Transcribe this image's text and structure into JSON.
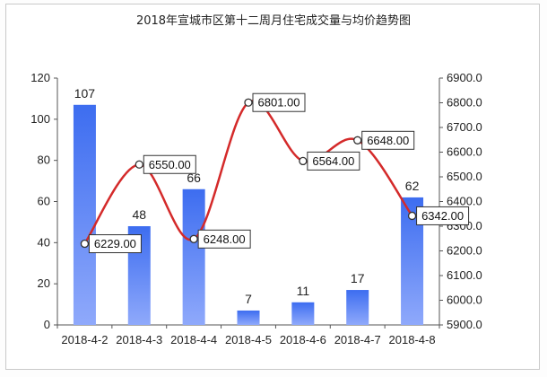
{
  "chart_data": {
    "type": "bar+line",
    "title": "2018年宣城市区第十二周月住宅成交量与均价趋势图",
    "categories": [
      "2018-4-2",
      "2018-4-3",
      "2018-4-4",
      "2018-4-5",
      "2018-4-6",
      "2018-4-7",
      "2018-4-8"
    ],
    "series": [
      {
        "type": "bar",
        "axis": "left",
        "values": [
          107,
          48,
          66,
          7,
          11,
          17,
          62
        ]
      },
      {
        "type": "line",
        "axis": "right",
        "values": [
          6229.0,
          6550.0,
          6248.0,
          6801.0,
          6564.0,
          6648.0,
          6342.0
        ]
      }
    ],
    "bar_labels": [
      "107",
      "48",
      "66",
      "7",
      "11",
      "17",
      "62"
    ],
    "line_labels": [
      "6229.00",
      "6550.00",
      "6248.00",
      "6801.00",
      "6564.00",
      "6648.00",
      "6342.00"
    ],
    "y_left": {
      "min": 0,
      "max": 120,
      "ticks": [
        "0",
        "20",
        "40",
        "60",
        "80",
        "100",
        "120"
      ]
    },
    "y_right": {
      "min": 5900,
      "max": 6900,
      "ticks": [
        "5900.0",
        "6000.0",
        "6100.0",
        "6200.0",
        "6300.0",
        "6400.0",
        "6500.0",
        "6600.0",
        "6700.0",
        "6800.0",
        "6900.0"
      ]
    },
    "grid": false,
    "legend": "none",
    "colors": {
      "bar_top": "#3d6df0",
      "bar_bottom": "#8fa9fb",
      "line": "#d42a2a"
    }
  }
}
